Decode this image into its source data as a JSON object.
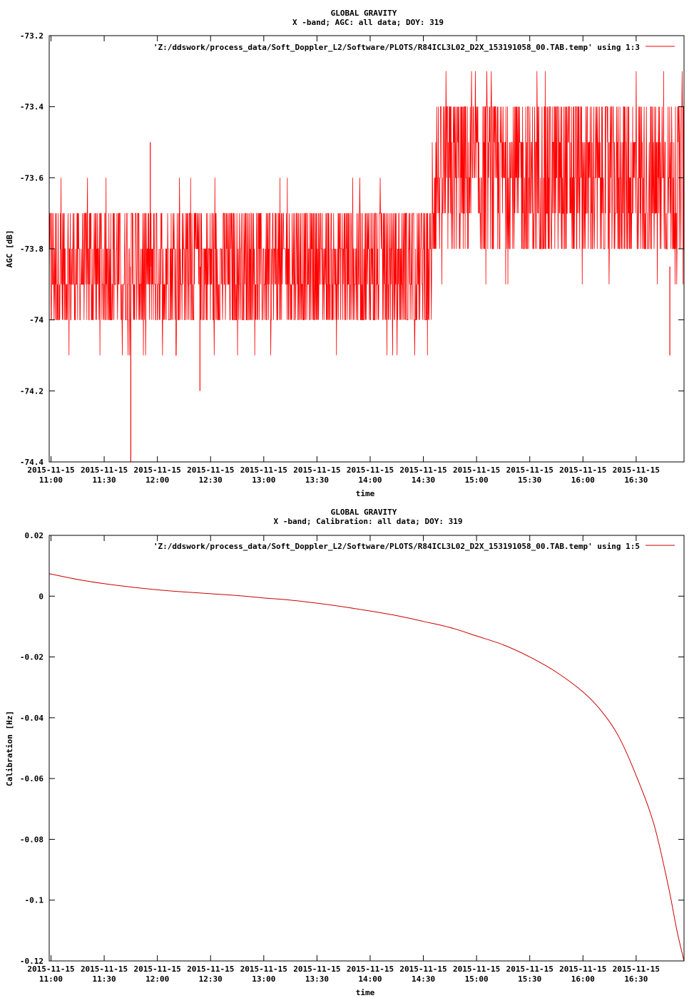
{
  "chart_data": [
    {
      "type": "line",
      "title": "GLOBAL GRAVITY",
      "subtitle": "X -band; AGC: all data; DOY: 319",
      "xlabel": "time",
      "ylabel": "AGC [dB]",
      "x_tick_date": "2015-11-15",
      "x_ticks": [
        "11:00",
        "11:30",
        "12:00",
        "12:30",
        "13:00",
        "13:30",
        "14:00",
        "14:30",
        "15:00",
        "15:30",
        "16:00",
        "16:30"
      ],
      "xlim": [
        "10:59",
        "16:57"
      ],
      "ylim": [
        -74.4,
        -73.2
      ],
      "y_ticks": [
        -73.2,
        -73.4,
        -73.6,
        -73.8,
        -74,
        -74.2,
        -74.4
      ],
      "y_tick_labels": [
        "-73.2",
        "-73.4",
        "-73.6",
        "-73.8",
        "-74",
        "-74.2",
        "-74.4"
      ],
      "grid": false,
      "legend_position": "top-right",
      "color": "#ff0000",
      "series": [
        {
          "name": "'Z:/ddswork/process_data/Soft_Doppler_L2/Software/PLOTS/R84ICL3L02_D2X_153191058_00.TAB.temp' using 1:3",
          "segments": [
            {
              "from": "10:59",
              "to": "14:35",
              "low": -74.0,
              "high": -73.7,
              "baseline": -73.85,
              "outlier_low": -74.1,
              "outlier_high": -73.6
            },
            {
              "from": "14:35",
              "to": "16:57",
              "low": -73.8,
              "high": -73.4,
              "baseline": -73.6,
              "outlier_low": -73.9,
              "outlier_high": -73.3
            }
          ],
          "spikes": [
            {
              "x": "11:45",
              "y": -74.4
            },
            {
              "x": "11:56",
              "y": -73.5
            },
            {
              "x": "12:24",
              "y": -74.2
            },
            {
              "x": "16:49",
              "y": -74.1
            }
          ]
        }
      ]
    },
    {
      "type": "line",
      "title": "GLOBAL GRAVITY",
      "subtitle": "X -band; Calibration: all data; DOY: 319",
      "xlabel": "time",
      "ylabel": "Calibration [Hz]",
      "x_tick_date": "2015-11-15",
      "x_ticks": [
        "11:00",
        "11:30",
        "12:00",
        "12:30",
        "13:00",
        "13:30",
        "14:00",
        "14:30",
        "15:00",
        "15:30",
        "16:00",
        "16:30"
      ],
      "xlim": [
        "10:59",
        "16:57"
      ],
      "ylim": [
        -0.12,
        0.02
      ],
      "y_ticks": [
        0.02,
        0,
        -0.02,
        -0.04,
        -0.06,
        -0.08,
        -0.1,
        -0.12
      ],
      "y_tick_labels": [
        "0.02",
        "0",
        "-0.02",
        "-0.04",
        "-0.06",
        "-0.08",
        "-0.1",
        "-0.12"
      ],
      "grid": false,
      "legend_position": "top-right",
      "color": "#cc0000",
      "series": [
        {
          "name": "'Z:/ddswork/process_data/Soft_Doppler_L2/Software/PLOTS/R84ICL3L02_D2X_153191058_00.TAB.temp' using 1:5",
          "points": [
            [
              "10:59",
              0.0074
            ],
            [
              "11:15",
              0.0055
            ],
            [
              "11:30",
              0.0041
            ],
            [
              "11:45",
              0.003
            ],
            [
              "12:00",
              0.0021
            ],
            [
              "12:15",
              0.0014
            ],
            [
              "12:30",
              0.0008
            ],
            [
              "12:45",
              0.0002
            ],
            [
              "13:00",
              -0.0006
            ],
            [
              "13:15",
              -0.0013
            ],
            [
              "13:30",
              -0.0023
            ],
            [
              "13:45",
              -0.0035
            ],
            [
              "14:00",
              -0.0049
            ],
            [
              "14:15",
              -0.0064
            ],
            [
              "14:30",
              -0.0083
            ],
            [
              "14:45",
              -0.0103
            ],
            [
              "15:00",
              -0.0131
            ],
            [
              "15:15",
              -0.016
            ],
            [
              "15:30",
              -0.02
            ],
            [
              "15:45",
              -0.025
            ],
            [
              "16:00",
              -0.0315
            ],
            [
              "16:10",
              -0.0375
            ],
            [
              "16:20",
              -0.046
            ],
            [
              "16:30",
              -0.059
            ],
            [
              "16:40",
              -0.075
            ],
            [
              "16:48",
              -0.095
            ],
            [
              "16:53",
              -0.11
            ],
            [
              "16:57",
              -0.12
            ]
          ]
        }
      ]
    }
  ]
}
